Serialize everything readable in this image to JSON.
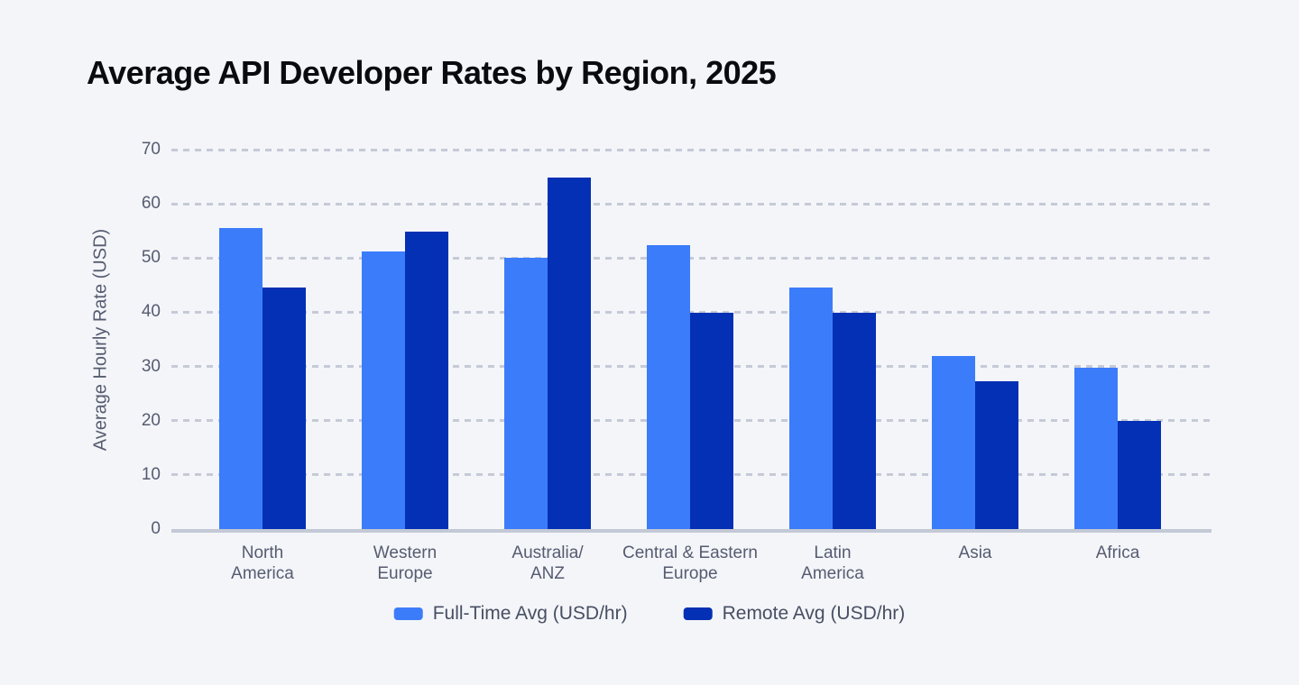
{
  "title": "Average API Developer Rates by Region, 2025",
  "colors": {
    "background": "#f4f5f9",
    "title_text": "#0a0b0e",
    "axis_text": "#555c70",
    "legend_text": "#474f62",
    "gridline": "#c5cad7",
    "axis_line": "#c3c9d5",
    "series_full_time": "#3b7cfa",
    "series_remote": "#0330b4"
  },
  "chart_data": {
    "type": "bar",
    "title": "Average API Developer Rates by Region, 2025",
    "xlabel": "",
    "ylabel": "Average Hourly Rate (USD)",
    "ylim": [
      0,
      70
    ],
    "y_ticks": [
      0,
      10,
      20,
      30,
      40,
      50,
      60,
      70
    ],
    "grid": "horizontal dashed",
    "legend_position": "bottom-center",
    "categories": [
      "North America",
      "Western Europe",
      "Australia/ANZ",
      "Central & Eastern Europe",
      "Latin America",
      "Asia",
      "Africa"
    ],
    "category_label_lines": [
      [
        "North",
        "America"
      ],
      [
        "Western",
        "Europe"
      ],
      [
        "Australia/",
        "ANZ"
      ],
      [
        "Central & Eastern",
        "Europe"
      ],
      [
        "Latin",
        "America"
      ],
      [
        "Asia"
      ],
      [
        "Africa"
      ]
    ],
    "series": [
      {
        "name": "Full-Time Avg (USD/hr)",
        "color": "#3b7cfa",
        "values": [
          55.5,
          51.2,
          50,
          52.3,
          44.5,
          32,
          29.8
        ]
      },
      {
        "name": "Remote Avg (USD/hr)",
        "color": "#0330b4",
        "values": [
          44.5,
          54.8,
          64.8,
          39.9,
          39.9,
          27.3,
          19.9
        ]
      }
    ]
  }
}
